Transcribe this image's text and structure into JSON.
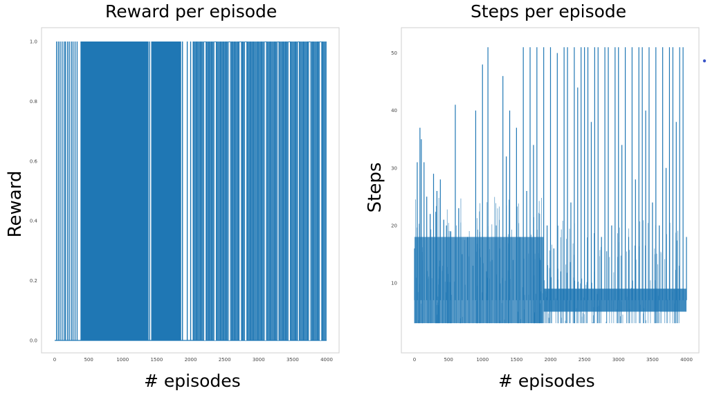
{
  "colors": {
    "line": "#1f77b4",
    "dot": "#3a55c8"
  },
  "chart_data": [
    {
      "type": "bar",
      "title": "Reward per episode",
      "xlabel": "# episodes",
      "ylabel": "Reward",
      "xlim": [
        0,
        4000
      ],
      "ylim": [
        0,
        1
      ],
      "xticks": [
        "0",
        "500",
        "1000",
        "1500",
        "2000",
        "2500",
        "3000",
        "3500",
        "4000"
      ],
      "yticks": [
        "0.0",
        "0.2",
        "0.4",
        "0.6",
        "0.8",
        "1.0"
      ],
      "x": [
        28,
        55,
        80,
        110,
        140,
        160,
        190,
        215,
        245,
        270,
        300,
        330,
        1395,
        1880,
        1950,
        2000,
        2040,
        2090,
        2150,
        2230,
        2270,
        2310,
        2380,
        2440,
        2480,
        2520,
        2610,
        2650,
        2700,
        2760,
        2830,
        2880,
        2920,
        2990,
        3040,
        3120,
        3170,
        3240,
        3300,
        3360,
        3400,
        3470,
        3540,
        3600,
        3660,
        3720,
        3800,
        3870,
        3940
      ],
      "values": [
        1,
        1,
        1,
        1,
        1,
        1,
        1,
        1,
        1,
        1,
        1,
        1,
        1,
        1,
        1,
        1,
        1,
        1,
        1,
        1,
        1,
        1,
        1,
        1,
        1,
        1,
        1,
        1,
        1,
        1,
        1,
        1,
        1,
        1,
        1,
        1,
        1,
        1,
        1,
        1,
        1,
        1,
        1,
        1,
        1,
        1,
        1,
        1,
        1
      ],
      "dense_ranges": [
        [
          380,
          1380
        ],
        [
          1420,
          1860
        ]
      ],
      "grid": false
    },
    {
      "type": "line",
      "title": "Steps per episode",
      "xlabel": "# episodes",
      "ylabel": "Steps",
      "xlim": [
        0,
        4000
      ],
      "ylim": [
        0,
        50
      ],
      "xticks": [
        "0",
        "500",
        "1000",
        "1500",
        "2000",
        "2500",
        "3000",
        "3500",
        "4000"
      ],
      "yticks": [
        "10",
        "20",
        "30",
        "40",
        "50"
      ],
      "x": [
        0,
        40,
        80,
        100,
        140,
        180,
        230,
        280,
        330,
        380,
        430,
        470,
        530,
        600,
        650,
        700,
        780,
        860,
        900,
        960,
        1000,
        1060,
        1080,
        1140,
        1200,
        1250,
        1300,
        1350,
        1400,
        1450,
        1500,
        1550,
        1600,
        1650,
        1700,
        1750,
        1800,
        1850,
        1900,
        1950,
        2000,
        2050,
        2100,
        2150,
        2200,
        2250,
        2300,
        2350,
        2400,
        2450,
        2500,
        2550,
        2600,
        2650,
        2700,
        2750,
        2800,
        2850,
        2900,
        2950,
        3000,
        3050,
        3100,
        3150,
        3200,
        3250,
        3300,
        3350,
        3400,
        3450,
        3500,
        3550,
        3600,
        3650,
        3700,
        3750,
        3800,
        3850,
        3900,
        3950,
        4000
      ],
      "values": [
        16,
        31,
        37,
        35,
        31,
        25,
        22,
        29,
        26,
        28,
        21,
        20,
        19,
        41,
        23,
        15,
        18,
        13,
        40,
        16,
        48,
        12,
        51,
        14,
        20,
        16,
        46,
        32,
        40,
        14,
        37,
        18,
        51,
        26,
        51,
        34,
        51,
        14,
        51,
        20,
        51,
        16,
        50,
        12,
        51,
        51,
        24,
        51,
        44,
        51,
        51,
        51,
        38,
        51,
        51,
        18,
        51,
        51,
        20,
        51,
        51,
        34,
        51,
        18,
        51,
        28,
        51,
        51,
        40,
        51,
        24,
        51,
        20,
        51,
        30,
        51,
        51,
        38,
        51,
        51,
        18
      ],
      "baseline_band": [
        3,
        18
      ],
      "grid": false
    }
  ]
}
